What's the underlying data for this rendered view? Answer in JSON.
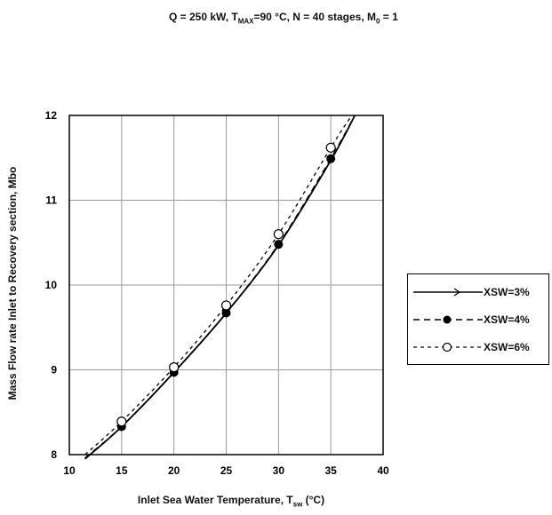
{
  "chart_data": {
    "type": "line",
    "title_parts": {
      "pre": "Q = 250 kW, T",
      "max_sub": "MAX",
      "mid": "=90 °C,  N = 40 stages, M",
      "m_sub": "0",
      "post": " = 1"
    },
    "ylabel": "Mass Flow rate Inlet to Recovery section, Mbo",
    "xlabel_parts": {
      "pre": "Inlet Sea Water Temperature, T",
      "sub": "sw",
      "post": " (°C)"
    },
    "xlim": [
      10,
      40
    ],
    "ylim": [
      8,
      12
    ],
    "xticks": [
      "10",
      "15",
      "20",
      "25",
      "30",
      "35",
      "40"
    ],
    "yticks": [
      "8",
      "9",
      "10",
      "11",
      "12"
    ],
    "grid": true,
    "legend_position": "right",
    "series": [
      {
        "name": "XSW=3%",
        "marker": "none",
        "line": "solid",
        "x": [
          11.5,
          15,
          20,
          25,
          30,
          35,
          37.3
        ],
        "y": [
          7.95,
          8.33,
          8.97,
          9.67,
          10.47,
          11.47,
          12.0
        ]
      },
      {
        "name": "XSW=4%",
        "marker": "filled-circle",
        "line": "dashed",
        "x": [
          11.5,
          15,
          20,
          25,
          30,
          35,
          37.3
        ],
        "y": [
          7.96,
          8.33,
          8.97,
          9.67,
          10.48,
          11.49,
          12.0
        ],
        "markers_x": [
          15,
          20,
          25,
          30,
          35
        ]
      },
      {
        "name": "XSW=6%",
        "marker": "open-circle",
        "line": "dashed",
        "x": [
          11.5,
          15,
          20,
          25,
          30,
          35,
          37.0
        ],
        "y": [
          8.0,
          8.39,
          9.03,
          9.76,
          10.6,
          11.62,
          12.0
        ],
        "markers_x": [
          15,
          20,
          25,
          30,
          35
        ]
      }
    ]
  }
}
